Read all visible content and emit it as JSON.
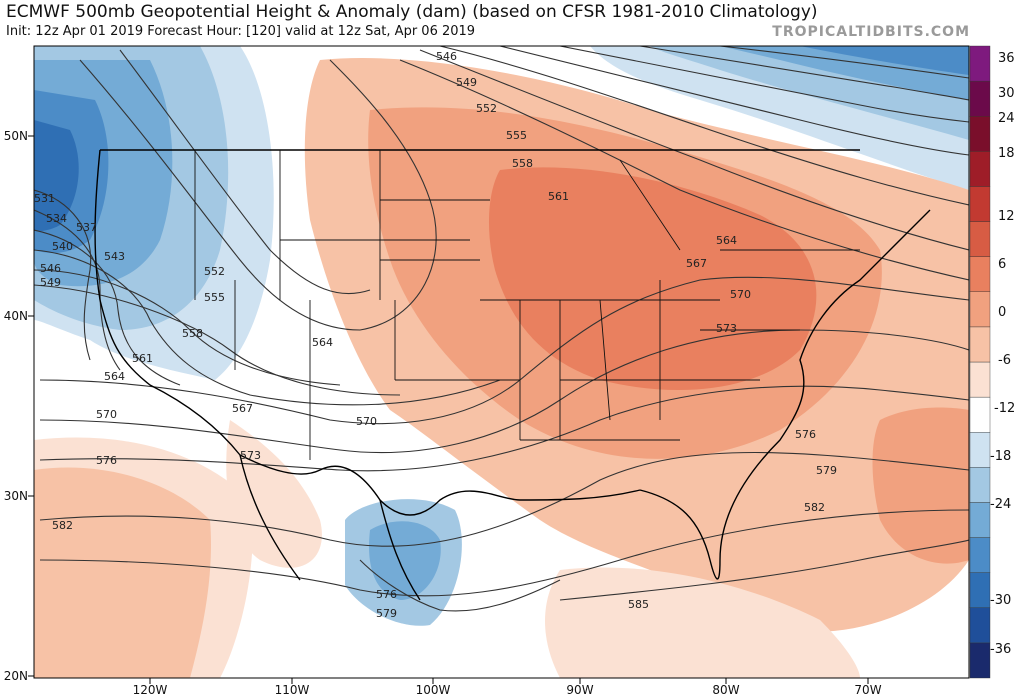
{
  "header": {
    "title": "ECMWF 500mb Geopotential Height & Anomaly (dam) (based on CFSR 1981-2010 Climatology)",
    "subtitle": "Init: 12z Apr 01 2019   Forecast Hour: [120]   valid at 12z Sat, Apr 06 2019",
    "credit": "TROPICALTIDBITS.COM"
  },
  "colorbar": {
    "ticks": [
      "36",
      "30",
      "24",
      "18",
      "12",
      "6",
      "0",
      "-6",
      "-12",
      "-18",
      "-24",
      "-30",
      "-36"
    ],
    "colors": [
      "#1a2a6c",
      "#1f4f9a",
      "#2f6fb4",
      "#4c8cc7",
      "#74abd6",
      "#a3c8e3",
      "#cfe2f1",
      "#ffffff",
      "#fbe1d3",
      "#f7c2a6",
      "#f1a17f",
      "#e9805f",
      "#d75c44",
      "#c23a31",
      "#9e1d28",
      "#7a0f2b",
      "#6b0a4a",
      "#7e1a7e"
    ]
  },
  "axes": {
    "lon_labels": [
      "120W",
      "110W",
      "100W",
      "90W",
      "80W",
      "70W"
    ],
    "lat_labels": [
      "50N",
      "40N",
      "30N",
      "20N"
    ]
  },
  "contour_labels": [
    "531",
    "534",
    "537",
    "540",
    "546",
    "549",
    "543",
    "552",
    "555",
    "558",
    "561",
    "564",
    "567",
    "570",
    "573",
    "576",
    "582",
    "564",
    "546",
    "549",
    "552",
    "555",
    "558",
    "561",
    "564",
    "567",
    "570",
    "573",
    "570",
    "576",
    "579",
    "582",
    "576",
    "579",
    "585"
  ]
}
